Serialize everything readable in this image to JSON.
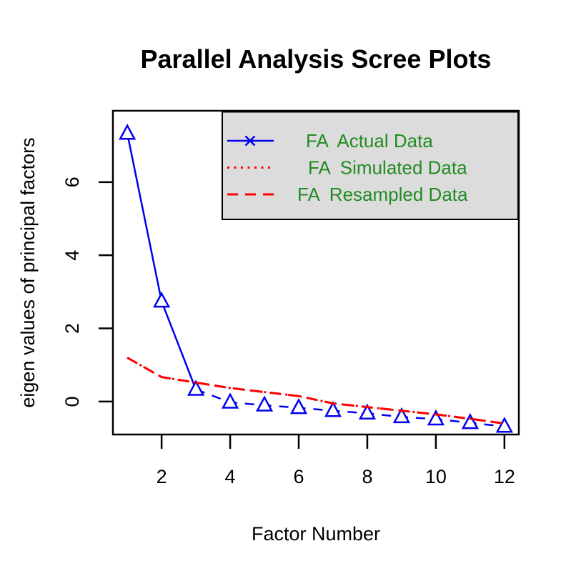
{
  "chart_data": {
    "type": "line",
    "title": "Parallel Analysis Scree Plots",
    "xlabel": "Factor Number",
    "ylabel": "eigen values of principal factors",
    "x": [
      1,
      2,
      3,
      4,
      5,
      6,
      7,
      8,
      9,
      10,
      11,
      12
    ],
    "xlim": [
      0.58,
      12.42
    ],
    "ylim": [
      -0.9,
      7.95
    ],
    "xticks": [
      2,
      4,
      6,
      8,
      10,
      12
    ],
    "yticks": [
      0,
      2,
      4,
      6
    ],
    "grid": false,
    "legend_position": "topright",
    "series": [
      {
        "name": "FA Actual Data",
        "color": "#0000ee",
        "marker": "open-triangle",
        "line_style": "solid then dashed after x=3",
        "solid_through_index": 2,
        "values": [
          7.33,
          2.74,
          0.33,
          -0.02,
          -0.1,
          -0.17,
          -0.25,
          -0.32,
          -0.42,
          -0.48,
          -0.58,
          -0.68
        ]
      },
      {
        "name": "FA Simulated Data",
        "color": "#ff0000",
        "marker": "none",
        "line_style": "dotted",
        "note": "overlaps resampled curve",
        "values": [
          1.2,
          0.67,
          0.52,
          0.37,
          0.26,
          0.15,
          -0.05,
          -0.15,
          -0.25,
          -0.35,
          -0.47,
          -0.6
        ]
      },
      {
        "name": "FA Resampled Data",
        "color": "#ff0000",
        "marker": "none",
        "line_style": "dashed",
        "values": [
          1.2,
          0.67,
          0.52,
          0.37,
          0.26,
          0.15,
          -0.05,
          -0.15,
          -0.25,
          -0.35,
          -0.47,
          -0.6
        ]
      }
    ],
    "legend": {
      "background": "#dcdcdc",
      "border_color": "#000000",
      "text_color": "#228B22",
      "entries": [
        {
          "label": "FA  Actual Data",
          "marker": "blue solid line with x"
        },
        {
          "label": "FA  Simulated Data",
          "marker": "red dotted line"
        },
        {
          "label": "FA  Resampled Data",
          "marker": "red dashed line"
        }
      ]
    },
    "colors": {
      "actual": "#0000ee",
      "simulated": "#ff0000",
      "resampled": "#ff0000",
      "legend_text": "#228B22",
      "axis": "#000000",
      "background": "#ffffff"
    }
  }
}
